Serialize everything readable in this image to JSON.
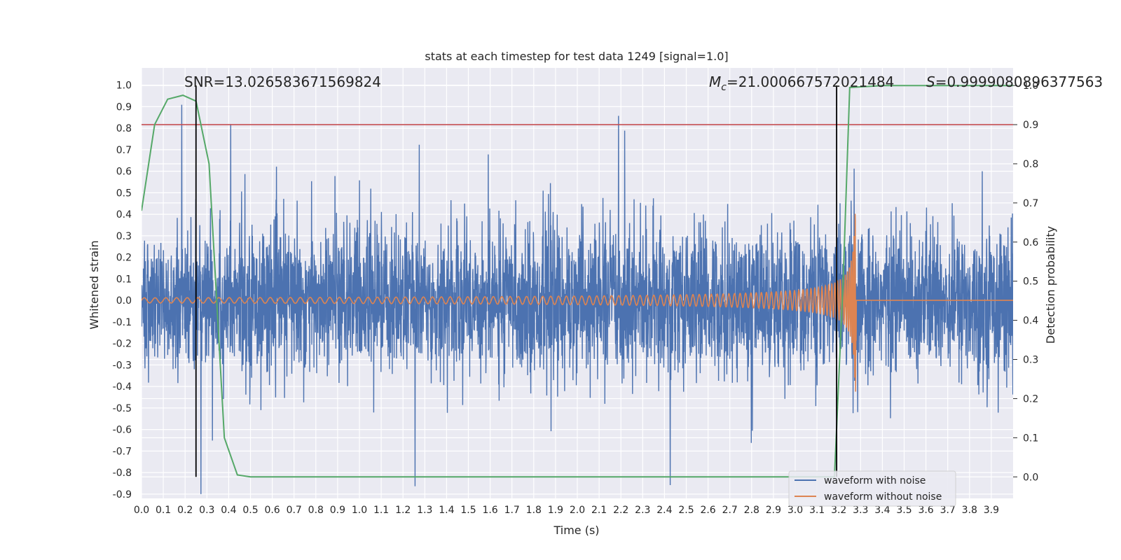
{
  "chart_data": {
    "type": "line",
    "title": "stats at each timestep for test data 1249 [signal=1.0]",
    "xlabel": "Time (s)",
    "ylabel": "Whitened strain",
    "ylabel_right": "Detection probability",
    "xlim": [
      0.0,
      4.0
    ],
    "ylim": [
      -0.92,
      1.08
    ],
    "ylim_right": [
      -0.055,
      1.045
    ],
    "xticks": [
      "0.0",
      "0.1",
      "0.2",
      "0.3",
      "0.4",
      "0.5",
      "0.6",
      "0.7",
      "0.8",
      "0.9",
      "1.0",
      "1.1",
      "1.2",
      "1.3",
      "1.4",
      "1.5",
      "1.6",
      "1.7",
      "1.8",
      "1.9",
      "2.0",
      "2.1",
      "2.2",
      "2.3",
      "2.4",
      "2.5",
      "2.6",
      "2.7",
      "2.8",
      "2.9",
      "3.0",
      "3.1",
      "3.2",
      "3.3",
      "3.4",
      "3.5",
      "3.6",
      "3.7",
      "3.8",
      "3.9"
    ],
    "yticks": [
      "-0.9",
      "-0.8",
      "-0.7",
      "-0.6",
      "-0.5",
      "-0.4",
      "-0.3",
      "-0.2",
      "-0.1",
      "0.0",
      "0.1",
      "0.2",
      "0.3",
      "0.4",
      "0.5",
      "0.6",
      "0.7",
      "0.8",
      "0.9",
      "1.0"
    ],
    "yticks_right": [
      "0.0",
      "0.1",
      "0.2",
      "0.3",
      "0.4",
      "0.5",
      "0.6",
      "0.7",
      "0.8",
      "0.9",
      "1.0"
    ],
    "grid": true,
    "legend_position": "lower-right",
    "series": [
      {
        "name": "waveform with noise",
        "color": "#4c72b0",
        "axis": "left",
        "amplitude": 0.3,
        "spikes_max": 1.0,
        "spikes_min": -0.9
      },
      {
        "name": "waveform without noise",
        "color": "#dd8452",
        "axis": "left",
        "chirp_start_amplitude": 0.012,
        "chirp_peak_amplitude": 0.45,
        "merger_time": 3.28
      },
      {
        "color": "#55a868",
        "axis": "right",
        "x": [
          0.0,
          0.06,
          0.12,
          0.19,
          0.25,
          0.31,
          0.38,
          0.44,
          0.5,
          1.0,
          2.0,
          2.5,
          3.0,
          3.12,
          3.18,
          3.22,
          3.25,
          3.4,
          3.7,
          4.0
        ],
        "y": [
          0.68,
          0.9,
          0.965,
          0.975,
          0.96,
          0.8,
          0.1,
          0.005,
          0.0,
          0.0,
          0.0,
          0.0,
          0.0,
          0.0,
          0.0,
          0.5,
          0.995,
          1.0,
          1.0,
          1.0
        ]
      }
    ],
    "threshold_line": {
      "value": 0.9,
      "axis": "right",
      "color": "#c44e52"
    },
    "vertical_markers": [
      0.25,
      3.19
    ],
    "annotations": {
      "snr": "SNR=13.026583671569824",
      "mc_symbol": "M",
      "mc_subscript": "c",
      "mc_value": "=21.000667572021484",
      "s_symbol": "S",
      "s_value": "=0.9999080896377563"
    }
  }
}
